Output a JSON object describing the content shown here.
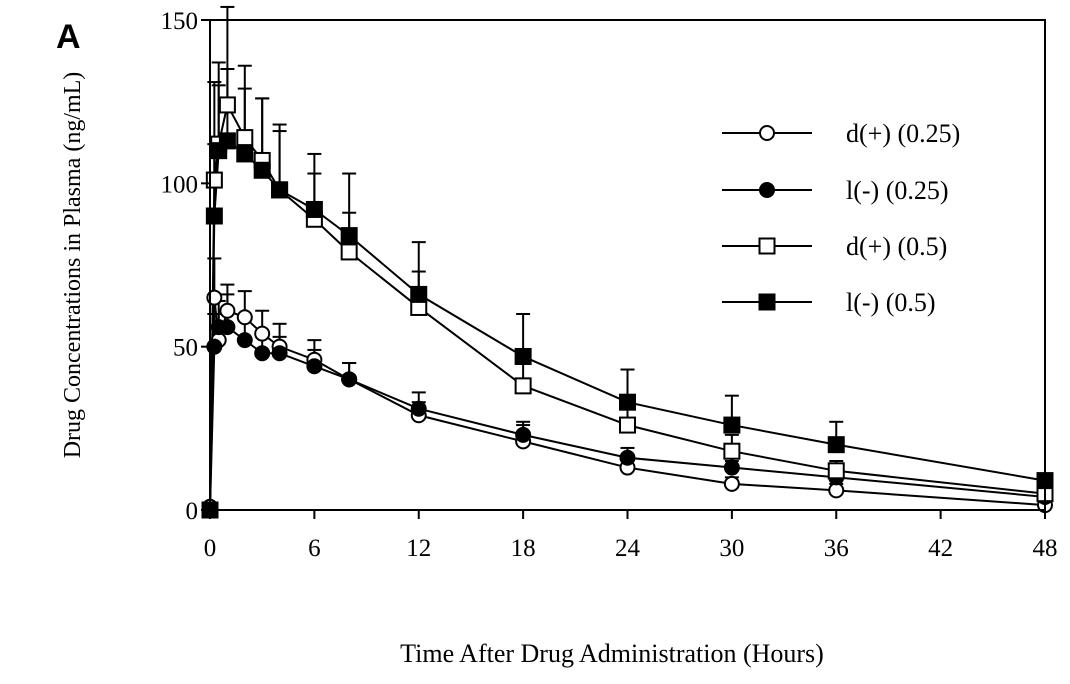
{
  "chart_data": {
    "type": "line",
    "panel_label": "A",
    "xlabel": "Time After Drug Administration (Hours)",
    "ylabel": "Drug Concentrations in Plasma (ng/mL)",
    "xlim": [
      0,
      48
    ],
    "ylim": [
      0,
      150
    ],
    "xticks": [
      "0",
      "6",
      "12",
      "18",
      "24",
      "30",
      "36",
      "42",
      "48"
    ],
    "yticks": [
      "0",
      "50",
      "100",
      "150"
    ],
    "grid": false,
    "legend_position": "top-right",
    "series": [
      {
        "name": "d(+) (0.25)",
        "marker": "open-circle",
        "x": [
          0,
          0.25,
          0.5,
          1,
          2,
          3,
          4,
          6,
          8,
          12,
          18,
          24,
          30,
          36,
          48
        ],
        "y": [
          1,
          65,
          52,
          61,
          59,
          54,
          50,
          46,
          40,
          29,
          21,
          13,
          8,
          6,
          1.5
        ],
        "error": [
          0,
          12,
          8,
          8,
          8,
          7,
          7,
          6,
          5,
          4,
          5,
          3,
          2,
          2,
          0
        ]
      },
      {
        "name": "l(-) (0.25)",
        "marker": "filled-circle",
        "x": [
          0,
          0.25,
          0.5,
          1,
          2,
          3,
          4,
          6,
          8,
          12,
          18,
          24,
          30,
          36,
          48
        ],
        "y": [
          0,
          50,
          56,
          56,
          52,
          48,
          48,
          44,
          40,
          31,
          23,
          16,
          13,
          10,
          4
        ],
        "error": [
          0,
          10,
          8,
          10,
          6,
          5,
          5,
          5,
          5,
          5,
          4,
          3,
          2,
          2,
          0
        ]
      },
      {
        "name": "d(+) (0.5)",
        "marker": "open-square",
        "x": [
          0,
          0.25,
          0.5,
          1,
          2,
          3,
          4,
          6,
          8,
          12,
          18,
          24,
          30,
          36,
          48
        ],
        "y": [
          0,
          101,
          112,
          124,
          114,
          107,
          98,
          89,
          79,
          62,
          38,
          26,
          18,
          12,
          5
        ],
        "error": [
          0,
          30,
          25,
          30,
          22,
          19,
          20,
          14,
          12,
          11,
          9,
          8,
          5,
          3,
          0
        ]
      },
      {
        "name": "l(-) (0.5)",
        "marker": "filled-square",
        "x": [
          0,
          0.25,
          0.5,
          1,
          2,
          3,
          4,
          6,
          8,
          12,
          18,
          24,
          30,
          36,
          48
        ],
        "y": [
          0,
          90,
          110,
          113,
          109,
          104,
          98,
          92,
          84,
          66,
          47,
          33,
          26,
          20,
          9
        ],
        "error": [
          0,
          22,
          20,
          22,
          20,
          22,
          18,
          17,
          19,
          16,
          13,
          10,
          9,
          7,
          0
        ]
      }
    ]
  }
}
